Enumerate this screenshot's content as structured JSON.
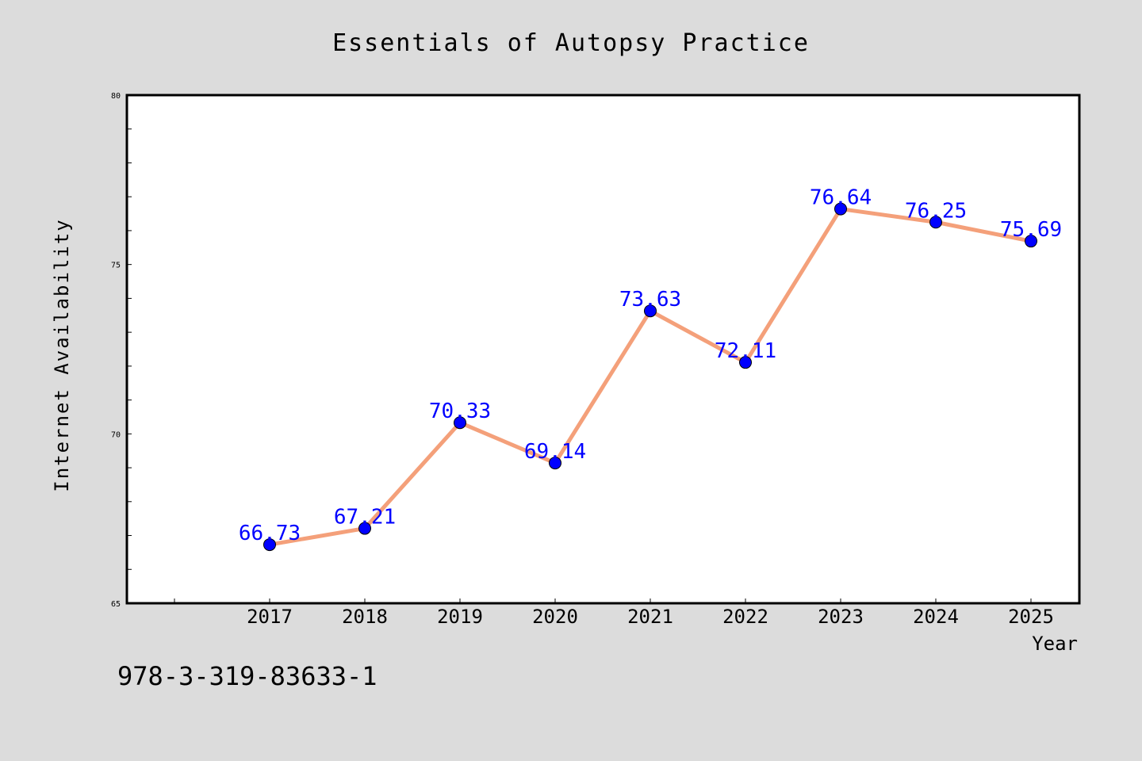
{
  "chart_data": {
    "type": "line",
    "title": "Essentials of Autopsy Practice",
    "xlabel": "Year",
    "ylabel": "Internet Availability",
    "x": [
      "2017",
      "2018",
      "2019",
      "2020",
      "2021",
      "2022",
      "2023",
      "2024",
      "2025"
    ],
    "series": [
      {
        "values": [
          66.73,
          67.21,
          70.33,
          69.14,
          73.63,
          72.11,
          76.64,
          76.25,
          75.69
        ],
        "labels": [
          "66.73",
          "67.21",
          "70.33",
          "69.14",
          "73.63",
          "72.11",
          "76.64",
          "76.25",
          "75.69"
        ]
      }
    ],
    "ylim": [
      65,
      80
    ],
    "y_ticks": [
      "65",
      "70",
      "75",
      "80"
    ],
    "grid": false,
    "line_color": "#f4a07a",
    "marker_color": "#0000ff",
    "label_color": "#0000ff"
  },
  "footer": {
    "isbn": "978-3-319-83633-1"
  }
}
